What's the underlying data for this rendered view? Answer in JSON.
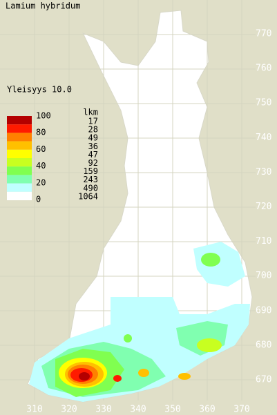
{
  "header": {
    "title": "Lamium hybridum",
    "frequency": "Yleisyys  10.0"
  },
  "legend": {
    "scale_labels": [
      "100",
      "80",
      "60",
      "40",
      "20",
      "0"
    ],
    "colors": [
      "#b40000",
      "#ff1a00",
      "#ff8000",
      "#ffc000",
      "#ffff00",
      "#c8ff20",
      "#80ff50",
      "#80ffb0",
      "#c0ffff",
      "#ffffff"
    ],
    "count_header": "lkm",
    "counts": [
      "17",
      "28",
      "49",
      "36",
      "47",
      "92",
      "159",
      "243",
      "490",
      "1064"
    ]
  },
  "axes": {
    "y_labels": [
      "770",
      "760",
      "750",
      "740",
      "730",
      "720",
      "710",
      "700",
      "690",
      "680",
      "670"
    ],
    "x_labels": [
      "310",
      "320",
      "330",
      "340",
      "350",
      "360",
      "370"
    ]
  }
}
